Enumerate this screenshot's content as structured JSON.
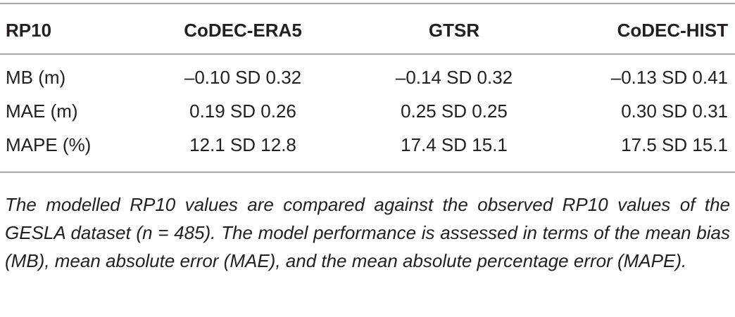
{
  "table": {
    "header": [
      "RP10",
      "CoDEC-ERA5",
      "GTSR",
      "CoDEC-HIST"
    ],
    "rows": [
      [
        "MB (m)",
        "–0.10 SD 0.32",
        "–0.14 SD 0.32",
        "–0.13 SD 0.41"
      ],
      [
        "MAE (m)",
        "0.19 SD 0.26",
        "0.25 SD 0.25",
        "0.30 SD 0.31"
      ],
      [
        "MAPE (%)",
        "12.1 SD 12.8",
        "17.4 SD 15.1",
        "17.5 SD 15.1"
      ]
    ]
  },
  "caption": "The modelled RP10 values are compared against the observed RP10 values of the GESLA dataset (n = 485). The model performance is assessed in terms of the mean bias (MB), mean absolute error (MAE), and the mean absolute percentage error (MAPE)."
}
